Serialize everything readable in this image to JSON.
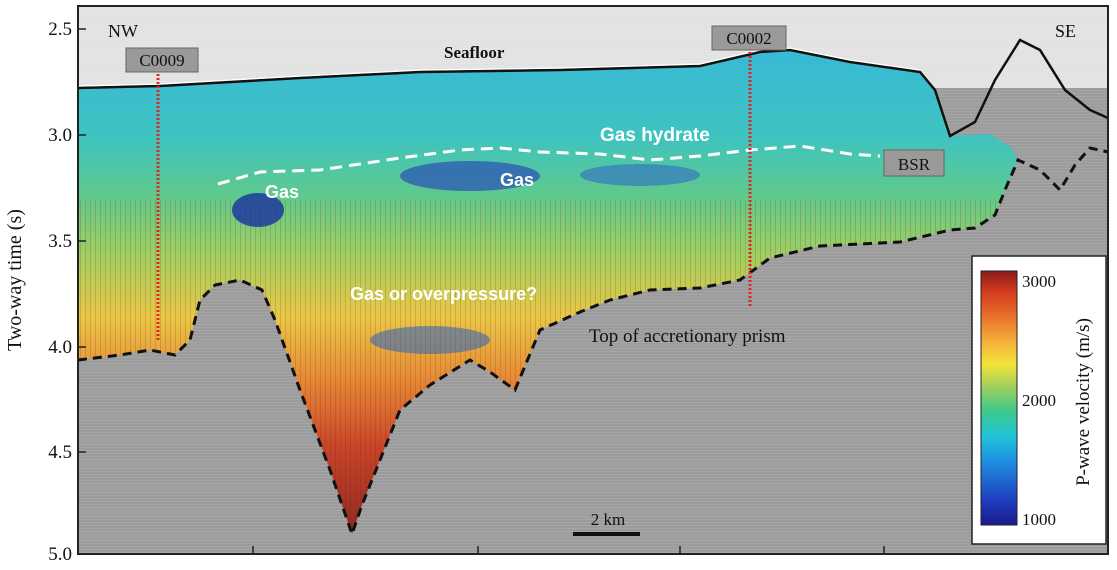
{
  "chart_data": {
    "type": "heatmap",
    "ylabel": "Two-way time (s)",
    "yticks": [
      "2.5",
      "3.0",
      "3.5",
      "4.0",
      "4.5",
      "5.0"
    ],
    "ylim": [
      2.4,
      5.0
    ],
    "orientation_labels": {
      "left": "NW",
      "right": "SE"
    },
    "wells": [
      {
        "name": "C0009",
        "position_km": 1.3,
        "depth_to_s": 3.95
      },
      {
        "name": "C0002",
        "position_km": 11.1,
        "depth_to_s": 3.84
      }
    ],
    "annotations": {
      "seafloor": "Seafloor",
      "gas_hydrate": "Gas hydrate",
      "bsr": "BSR",
      "gas_1": "Gas",
      "gas_2": "Gas",
      "overpressure": "Gas or overpressure?",
      "prism": "Top of accretionary prism"
    },
    "scale_bar": "2 km",
    "colorbar": {
      "label": "P-wave velocity (m/s)",
      "ticks": [
        "3000",
        "2000",
        "1000"
      ],
      "range": [
        1000,
        3000
      ],
      "colors": [
        "#1a1a8c",
        "#1e3fbf",
        "#1f8fe0",
        "#22c3d8",
        "#3fc98a",
        "#a6d05a",
        "#f1e53a",
        "#f5b13a",
        "#e9712a",
        "#d23a1e",
        "#8a1c1c"
      ]
    }
  }
}
